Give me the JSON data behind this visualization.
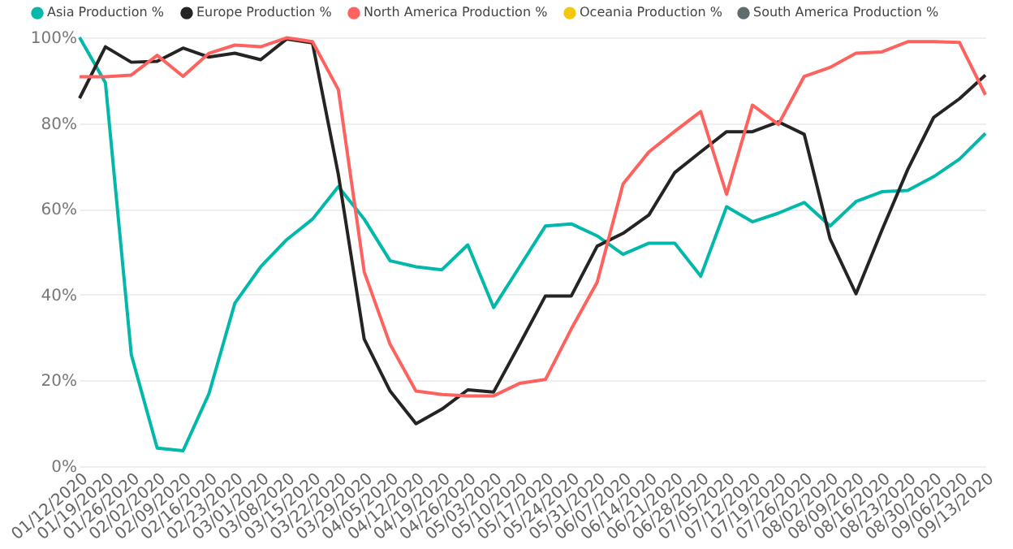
{
  "chart_data": {
    "type": "line",
    "categories": [
      "01/12/2020",
      "01/19/2020",
      "01/26/2020",
      "02/02/2020",
      "02/09/2020",
      "02/16/2020",
      "02/23/2020",
      "03/01/2020",
      "03/08/2020",
      "03/15/2020",
      "03/22/2020",
      "03/29/2020",
      "04/05/2020",
      "04/12/2020",
      "04/19/2020",
      "04/26/2020",
      "05/03/2020",
      "05/10/2020",
      "05/17/2020",
      "05/24/2020",
      "05/31/2020",
      "06/07/2020",
      "06/14/2020",
      "06/21/2020",
      "06/28/2020",
      "07/05/2020",
      "07/12/2020",
      "07/19/2020",
      "07/26/2020",
      "08/02/2020",
      "08/09/2020",
      "08/16/2020",
      "08/23/2020",
      "08/30/2020",
      "09/06/2020",
      "09/13/2020"
    ],
    "series": [
      {
        "name": "Asia Production %",
        "color": "#01b8aa",
        "values": [
          100,
          89.4,
          26,
          4.2,
          3.6,
          16.9,
          38,
          46.5,
          52.8,
          57.6,
          65.2,
          57.6,
          47.9,
          46.5,
          45.8,
          51.6,
          37,
          46.5,
          56,
          56.5,
          53.7,
          49.4,
          52,
          52,
          44.3,
          60.5,
          57,
          59,
          61.5,
          56,
          61.7,
          64,
          64.3,
          67.5,
          71.6,
          77.6
        ]
      },
      {
        "name": "Europe Production %",
        "color": "#252423",
        "values": [
          85.8,
          97.8,
          94.2,
          94.4,
          97.5,
          95.4,
          96.3,
          94.8,
          99.6,
          98.7,
          68,
          29.6,
          17.5,
          9.9,
          13.3,
          17.8,
          17.3,
          28.4,
          39.7,
          39.7,
          51.3,
          54.3,
          58.6,
          68.5,
          73.3,
          78,
          78,
          80.3,
          77.4,
          53,
          40.2,
          55,
          69.2,
          81.3,
          85.7,
          91.2
        ]
      },
      {
        "name": "North America Production %",
        "color": "#fd625e",
        "values": [
          90.8,
          90.8,
          91.2,
          95.8,
          90.9,
          96.3,
          98.2,
          97.8,
          99.9,
          99,
          87.8,
          45.3,
          28.4,
          17.5,
          16.7,
          16.4,
          16.4,
          19.3,
          20.2,
          32,
          42.9,
          65.8,
          73.3,
          78.1,
          82.7,
          63.4,
          84.2,
          79.7,
          90.9,
          93,
          96.3,
          96.6,
          99,
          99,
          98.8,
          86.6
        ]
      },
      {
        "name": "Oceania Production %",
        "color": "#f2c80f",
        "values": [
          null,
          null,
          null,
          null,
          null,
          null,
          null,
          null,
          null,
          null,
          null,
          null,
          null,
          null,
          null,
          null,
          null,
          null,
          null,
          null,
          null,
          null,
          null,
          null,
          null,
          null,
          null,
          null,
          null,
          null,
          null,
          null,
          null,
          null,
          null,
          null
        ]
      },
      {
        "name": "South America Production %",
        "color": "#5f6b6d",
        "values": [
          null,
          null,
          null,
          null,
          null,
          null,
          null,
          null,
          null,
          null,
          null,
          null,
          null,
          null,
          null,
          null,
          null,
          null,
          null,
          null,
          null,
          null,
          null,
          null,
          null,
          null,
          null,
          null,
          null,
          null,
          null,
          null,
          null,
          null,
          null,
          null
        ]
      }
    ],
    "ylim": [
      0,
      100
    ],
    "yticks": [
      {
        "value": 0,
        "label": "0%"
      },
      {
        "value": 20,
        "label": "20%"
      },
      {
        "value": 40,
        "label": "40%"
      },
      {
        "value": 60,
        "label": "60%"
      },
      {
        "value": 80,
        "label": "80%"
      },
      {
        "value": 100,
        "label": "100%"
      }
    ],
    "grid": "y",
    "legend": "top left",
    "marker": "none",
    "line_style": "solid"
  }
}
